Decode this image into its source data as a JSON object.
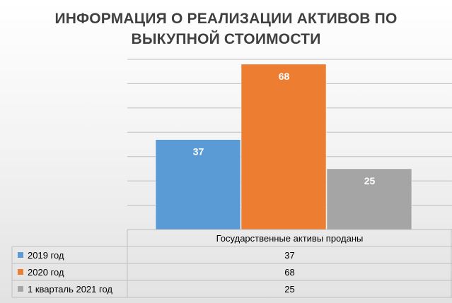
{
  "chart_data": {
    "type": "bar",
    "title": "ИНФОРМАЦИЯ О РЕАЛИЗАЦИИ АКТИВОВ ПО ВЫКУПНОЙ СТОИМОСТИ",
    "title_lines": [
      "ИНФОРМАЦИЯ О РЕАЛИЗАЦИИ АКТИВОВ ПО",
      "ВЫКУПНОЙ СТОИМОСТИ"
    ],
    "categories": [
      "Государственные активы проданы"
    ],
    "series": [
      {
        "name": "2019 год",
        "values": [
          37
        ],
        "color": "#5b9bd5"
      },
      {
        "name": "2020 год",
        "values": [
          68
        ],
        "color": "#ed7d31"
      },
      {
        "name": "1 кварталь 2021 год",
        "values": [
          25
        ],
        "color": "#a5a5a5"
      }
    ],
    "ylim": [
      0,
      70
    ],
    "grid": true,
    "legend": "data-table-below"
  }
}
